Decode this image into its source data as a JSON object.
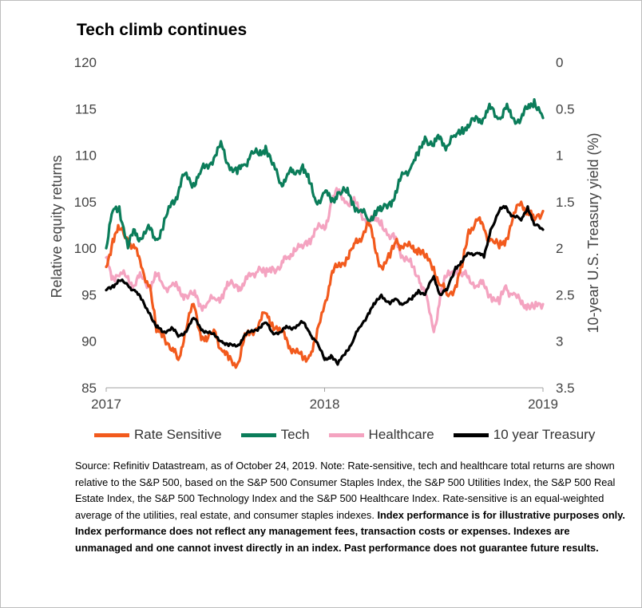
{
  "title": "Tech climb continues",
  "legend": [
    {
      "name": "Rate Sensitive",
      "color": "#f25a1d"
    },
    {
      "name": "Tech",
      "color": "#0b7d5a"
    },
    {
      "name": "Healthcare",
      "color": "#f4a3c0"
    },
    {
      "name": "10 year Treasury",
      "color": "#000000"
    }
  ],
  "source": {
    "regular": "Source: Refinitiv Datastream, as of October 24, 2019. Note: Rate-sensitive, tech and healthcare total returns are shown relative to the S&P 500, based on the S&P 500 Consumer Staples Index, the S&P 500 Utilities Index, the S&P 500 Real Estate Index, the S&P 500 Technology Index and the S&P 500 Healthcare Index. Rate-sensitive is an equal-weighted average of the utilities, real estate, and consumer staples indexes. ",
    "bold": "Index performance is for illustrative purposes only. Index performance does not reflect any management fees, transaction costs or expenses. Indexes are unmanaged and one cannot invest directly in an index. Past performance does not guarantee future results."
  },
  "chart_data": {
    "type": "line",
    "title": "Tech climb continues",
    "ylabel": "Relative equity returns",
    "y2label": "10-year U.S. Treasury yield (%)",
    "ylim": [
      85,
      120
    ],
    "y2lim": [
      3.5,
      0
    ],
    "y2_inverted": true,
    "xlim": [
      2017.0,
      2019.0
    ],
    "x_ticks": [
      "2017",
      "2018",
      "2019"
    ],
    "y_ticks": [
      "120",
      "115",
      "110",
      "105",
      "100",
      "95",
      "90",
      "85"
    ],
    "y2_ticks": [
      "0",
      "0.5",
      "1",
      "1.5",
      "2",
      "2.5",
      "3",
      "3.5"
    ],
    "grid": false,
    "legend_position": "bottom",
    "series": [
      {
        "name": "Rate Sensitive",
        "axis": "left",
        "color": "#f25a1d",
        "x": [
          2017.0,
          2017.03,
          2017.06,
          2017.1,
          2017.13,
          2017.16,
          2017.2,
          2017.23,
          2017.26,
          2017.3,
          2017.33,
          2017.36,
          2017.4,
          2017.43,
          2017.46,
          2017.5,
          2017.53,
          2017.56,
          2017.6,
          2017.63,
          2017.66,
          2017.7,
          2017.73,
          2017.76,
          2017.8,
          2017.83,
          2017.86,
          2017.9,
          2017.93,
          2017.96,
          2018.0,
          2018.03,
          2018.06,
          2018.1,
          2018.13,
          2018.16,
          2018.2,
          2018.23,
          2018.26,
          2018.3,
          2018.33,
          2018.36,
          2018.4,
          2018.43,
          2018.46,
          2018.5,
          2018.53,
          2018.56,
          2018.6,
          2018.63,
          2018.66,
          2018.7,
          2018.73,
          2018.76,
          2018.8,
          2018.83,
          2018.86,
          2018.9,
          2018.93,
          2018.96,
          2019.0
        ],
        "y": [
          98,
          101,
          102,
          101,
          100,
          98,
          96,
          91,
          91,
          89,
          88,
          91,
          94,
          91,
          90,
          91,
          89,
          88,
          87.5,
          90,
          91,
          92,
          93,
          92,
          91,
          90,
          89,
          88,
          88.5,
          90,
          94,
          97,
          98,
          99,
          100,
          101,
          103,
          100,
          98,
          99,
          101,
          100,
          100,
          100,
          99,
          98,
          96,
          95,
          96,
          98,
          102,
          103,
          102,
          101,
          100,
          101,
          103,
          105,
          104,
          103,
          104
        ]
      },
      {
        "name": "Tech",
        "axis": "left",
        "color": "#0b7d5a",
        "x": [
          2017.0,
          2017.03,
          2017.06,
          2017.1,
          2017.13,
          2017.16,
          2017.2,
          2017.23,
          2017.26,
          2017.3,
          2017.33,
          2017.36,
          2017.4,
          2017.43,
          2017.46,
          2017.5,
          2017.53,
          2017.56,
          2017.6,
          2017.63,
          2017.66,
          2017.7,
          2017.73,
          2017.76,
          2017.8,
          2017.83,
          2017.86,
          2017.9,
          2017.93,
          2017.96,
          2018.0,
          2018.03,
          2018.06,
          2018.1,
          2018.13,
          2018.16,
          2018.2,
          2018.23,
          2018.26,
          2018.3,
          2018.33,
          2018.36,
          2018.4,
          2018.43,
          2018.46,
          2018.5,
          2018.53,
          2018.56,
          2018.6,
          2018.63,
          2018.66,
          2018.7,
          2018.73,
          2018.76,
          2018.8,
          2018.83,
          2018.86,
          2018.9,
          2018.93,
          2018.96,
          2019.0
        ],
        "y": [
          100,
          104,
          104.5,
          100,
          102,
          101,
          102,
          101,
          102,
          105,
          106,
          108,
          107,
          108,
          109,
          110,
          111,
          109,
          108,
          109,
          110,
          110,
          111,
          109,
          107,
          108,
          108,
          109,
          107,
          105,
          106,
          105,
          106,
          106,
          105,
          104,
          103,
          104,
          104,
          105,
          106,
          108,
          109,
          110,
          112,
          111,
          112,
          111,
          112,
          113,
          113,
          114,
          114,
          115,
          114,
          115,
          114,
          114,
          115,
          116,
          114
        ]
      },
      {
        "name": "Healthcare",
        "axis": "left",
        "color": "#f4a3c0",
        "x": [
          2017.0,
          2017.03,
          2017.06,
          2017.1,
          2017.13,
          2017.16,
          2017.2,
          2017.23,
          2017.26,
          2017.3,
          2017.33,
          2017.36,
          2017.4,
          2017.43,
          2017.46,
          2017.5,
          2017.53,
          2017.56,
          2017.6,
          2017.63,
          2017.66,
          2017.7,
          2017.73,
          2017.76,
          2017.8,
          2017.83,
          2017.86,
          2017.9,
          2017.93,
          2017.96,
          2018.0,
          2018.03,
          2018.06,
          2018.1,
          2018.13,
          2018.16,
          2018.2,
          2018.23,
          2018.26,
          2018.3,
          2018.33,
          2018.36,
          2018.4,
          2018.43,
          2018.46,
          2018.5,
          2018.53,
          2018.56,
          2018.6,
          2018.63,
          2018.66,
          2018.7,
          2018.73,
          2018.76,
          2018.8,
          2018.83,
          2018.86,
          2018.9,
          2018.93,
          2018.96,
          2019.0
        ],
        "y": [
          99,
          97,
          97,
          97,
          96,
          97,
          96,
          97,
          96,
          96,
          95.5,
          95,
          95,
          94,
          94,
          94.5,
          95,
          96,
          96,
          96,
          97,
          98,
          97,
          98,
          98,
          99,
          100,
          100,
          101,
          102,
          102,
          105,
          106,
          105,
          105,
          104,
          103,
          103,
          103,
          101,
          101,
          99,
          98,
          97,
          95,
          91,
          95,
          97,
          98,
          97,
          97,
          96,
          96,
          95,
          94,
          96,
          95,
          94,
          94,
          93.5,
          94
        ]
      },
      {
        "name": "10 year Treasury",
        "axis": "right",
        "color": "#000000",
        "x": [
          2017.0,
          2017.03,
          2017.06,
          2017.1,
          2017.13,
          2017.16,
          2017.2,
          2017.23,
          2017.26,
          2017.3,
          2017.33,
          2017.36,
          2017.4,
          2017.43,
          2017.46,
          2017.5,
          2017.53,
          2017.56,
          2017.6,
          2017.63,
          2017.66,
          2017.7,
          2017.73,
          2017.76,
          2017.8,
          2017.83,
          2017.86,
          2017.9,
          2017.93,
          2017.96,
          2018.0,
          2018.03,
          2018.06,
          2018.1,
          2018.13,
          2018.16,
          2018.2,
          2018.23,
          2018.26,
          2018.3,
          2018.33,
          2018.36,
          2018.4,
          2018.43,
          2018.46,
          2018.5,
          2018.53,
          2018.56,
          2018.6,
          2018.63,
          2018.66,
          2018.7,
          2018.73,
          2018.76,
          2018.8,
          2018.83,
          2018.86,
          2018.9,
          2018.93,
          2018.96,
          2019.0
        ],
        "y": [
          2.45,
          2.4,
          2.35,
          2.4,
          2.45,
          2.55,
          2.7,
          2.85,
          2.9,
          2.85,
          2.95,
          2.9,
          2.75,
          2.85,
          2.9,
          2.95,
          3.0,
          3.05,
          3.05,
          2.95,
          2.9,
          2.85,
          2.8,
          2.9,
          2.9,
          2.85,
          2.85,
          2.8,
          2.9,
          3.0,
          3.2,
          3.15,
          3.25,
          3.1,
          3.0,
          2.85,
          2.7,
          2.6,
          2.5,
          2.6,
          2.55,
          2.6,
          2.55,
          2.45,
          2.5,
          2.3,
          2.5,
          2.45,
          2.2,
          2.15,
          2.05,
          2.05,
          2.1,
          1.8,
          1.6,
          1.55,
          1.65,
          1.7,
          1.55,
          1.75,
          1.8
        ]
      }
    ]
  }
}
